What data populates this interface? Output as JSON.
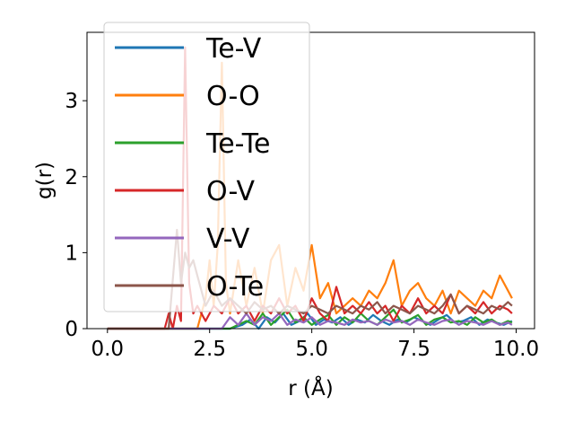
{
  "chart_data": {
    "type": "line",
    "xlabel": "r (Å)",
    "ylabel": "g(r)",
    "xlim": [
      -0.5,
      10.45
    ],
    "ylim": [
      0,
      3.9
    ],
    "xticks": [
      "0.0",
      "2.5",
      "5.0",
      "7.5",
      "10.0"
    ],
    "xtick_values": [
      0,
      2.5,
      5,
      7.5,
      10
    ],
    "yticks": [
      "0",
      "1",
      "2",
      "3"
    ],
    "ytick_values": [
      0,
      1,
      2,
      3
    ],
    "grid": false,
    "legend_position": "top-left",
    "series": [
      {
        "name": "Te-V",
        "color": "#1f77b4",
        "x": [
          0,
          0.5,
          1.0,
          1.5,
          2.0,
          2.5,
          3.0,
          3.3,
          3.5,
          3.7,
          3.9,
          4.1,
          4.3,
          4.5,
          4.7,
          4.9,
          5.1,
          5.3,
          5.5,
          5.7,
          5.9,
          6.1,
          6.3,
          6.5,
          6.7,
          6.9,
          7.1,
          7.3,
          7.5,
          7.7,
          7.9,
          8.1,
          8.3,
          8.5,
          8.7,
          8.9,
          9.1,
          9.3,
          9.5,
          9.7,
          9.9
        ],
        "y": [
          0,
          0,
          0,
          0,
          0,
          0,
          0,
          0.05,
          0.12,
          0,
          0.15,
          0.08,
          0.2,
          0.05,
          0.1,
          0.2,
          0.05,
          0.12,
          0.08,
          0.15,
          0.05,
          0.12,
          0.08,
          0.18,
          0.1,
          0.05,
          0.12,
          0.08,
          0.15,
          0.1,
          0.05,
          0.12,
          0.18,
          0.08,
          0.1,
          0.15,
          0.05,
          0.12,
          0.08,
          0.05,
          0.1
        ]
      },
      {
        "name": "O-O",
        "color": "#ff7f0e",
        "x": [
          0,
          1.5,
          2.2,
          2.4,
          2.5,
          2.6,
          2.7,
          2.8,
          2.9,
          3.0,
          3.2,
          3.4,
          3.6,
          3.8,
          4.0,
          4.2,
          4.4,
          4.6,
          4.8,
          5.0,
          5.2,
          5.4,
          5.6,
          5.8,
          6.0,
          6.2,
          6.4,
          6.6,
          6.8,
          7.0,
          7.2,
          7.4,
          7.6,
          7.8,
          8.0,
          8.2,
          8.4,
          8.6,
          8.8,
          9.0,
          9.2,
          9.4,
          9.6,
          9.8,
          9.9
        ],
        "y": [
          0,
          0,
          0,
          0.4,
          0.9,
          0.3,
          1.1,
          3.5,
          0.6,
          0.2,
          0.9,
          0.3,
          0.8,
          0.2,
          0.9,
          1.1,
          0.3,
          0.8,
          0.5,
          1.1,
          0.4,
          0.6,
          0.2,
          0.3,
          0.4,
          0.3,
          0.5,
          0.4,
          0.6,
          0.9,
          0.3,
          0.5,
          0.6,
          0.4,
          0.3,
          0.5,
          0.2,
          0.5,
          0.4,
          0.3,
          0.5,
          0.4,
          0.7,
          0.5,
          0.4
        ]
      },
      {
        "name": "Te-Te",
        "color": "#2ca02c",
        "x": [
          0,
          1.0,
          2.0,
          3.0,
          3.4,
          3.6,
          3.8,
          4.0,
          4.2,
          4.4,
          4.6,
          4.8,
          5.0,
          5.2,
          5.4,
          5.6,
          5.8,
          6.0,
          6.2,
          6.4,
          6.6,
          6.8,
          7.0,
          7.2,
          7.4,
          7.6,
          7.8,
          8.0,
          8.2,
          8.4,
          8.6,
          8.8,
          9.0,
          9.2,
          9.4,
          9.6,
          9.8,
          9.9
        ],
        "y": [
          0,
          0,
          0,
          0,
          0.1,
          0.05,
          0.2,
          0.05,
          0.15,
          0.25,
          0.08,
          0.15,
          0.05,
          0.12,
          0.18,
          0.05,
          0.15,
          0.08,
          0.2,
          0.1,
          0.05,
          0.15,
          0.25,
          0.08,
          0.12,
          0.18,
          0.05,
          0.12,
          0.15,
          0.08,
          0.1,
          0.05,
          0.15,
          0.08,
          0.12,
          0.05,
          0.1,
          0.08
        ]
      },
      {
        "name": "O-V",
        "color": "#d62728",
        "x": [
          0,
          1.4,
          1.5,
          1.6,
          1.7,
          1.8,
          1.9,
          2.0,
          2.1,
          2.2,
          2.4,
          2.6,
          2.8,
          3.0,
          3.2,
          3.4,
          3.6,
          3.8,
          4.0,
          4.2,
          4.4,
          4.6,
          4.8,
          5.0,
          5.2,
          5.4,
          5.6,
          5.8,
          6.0,
          6.2,
          6.4,
          6.6,
          6.8,
          7.0,
          7.2,
          7.4,
          7.6,
          7.8,
          8.0,
          8.2,
          8.4,
          8.6,
          8.8,
          9.0,
          9.2,
          9.4,
          9.6,
          9.8,
          9.9
        ],
        "y": [
          0,
          0,
          0.2,
          0,
          0.3,
          0.1,
          3.7,
          0.6,
          0.2,
          0.3,
          0.1,
          0.3,
          0.2,
          0.4,
          0.2,
          0.3,
          0.1,
          0.3,
          0.2,
          0.4,
          0.2,
          0.3,
          0.1,
          0.4,
          0.2,
          0.1,
          0.55,
          0.2,
          0.3,
          0.2,
          0.35,
          0.2,
          0.3,
          0.1,
          0.3,
          0.2,
          0.4,
          0.2,
          0.3,
          0.2,
          0.45,
          0.2,
          0.3,
          0.2,
          0.35,
          0.2,
          0.3,
          0.25,
          0.2
        ]
      },
      {
        "name": "V-V",
        "color": "#9467bd",
        "x": [
          0,
          1.0,
          2.0,
          2.8,
          3.0,
          3.2,
          3.4,
          3.6,
          3.8,
          4.0,
          4.2,
          4.4,
          4.6,
          4.8,
          5.0,
          5.2,
          5.4,
          5.6,
          5.8,
          6.0,
          6.2,
          6.4,
          6.6,
          6.8,
          7.0,
          7.2,
          7.4,
          7.6,
          7.8,
          8.0,
          8.2,
          8.4,
          8.6,
          8.8,
          9.0,
          9.2,
          9.4,
          9.6,
          9.8,
          9.9
        ],
        "y": [
          0,
          0,
          0,
          0,
          0.15,
          0.05,
          0.2,
          0.05,
          0.15,
          0.1,
          0.2,
          0.05,
          0.12,
          0.08,
          0.15,
          0.05,
          0.1,
          0.08,
          0.05,
          0.12,
          0.08,
          0.1,
          0.05,
          0.12,
          0.08,
          0.1,
          0.05,
          0.12,
          0.08,
          0.05,
          0.1,
          0.12,
          0.05,
          0.1,
          0.08,
          0.05,
          0.1,
          0.05,
          0.08,
          0.05
        ]
      },
      {
        "name": "O-Te",
        "color": "#8c564b",
        "x": [
          0,
          1.5,
          1.7,
          1.8,
          1.9,
          2.0,
          2.1,
          2.2,
          2.4,
          2.6,
          2.8,
          3.0,
          3.2,
          3.4,
          3.6,
          3.8,
          4.0,
          4.2,
          4.4,
          4.6,
          4.8,
          5.0,
          5.2,
          5.4,
          5.6,
          5.8,
          6.0,
          6.2,
          6.4,
          6.6,
          6.8,
          7.0,
          7.2,
          7.4,
          7.6,
          7.8,
          8.0,
          8.2,
          8.4,
          8.6,
          8.8,
          9.0,
          9.2,
          9.4,
          9.6,
          9.8,
          9.9
        ],
        "y": [
          0,
          0,
          1.3,
          0.6,
          1.0,
          0.8,
          0.9,
          0.7,
          0.3,
          0.5,
          0.3,
          0.4,
          0.3,
          0.2,
          0.35,
          0.25,
          0.3,
          0.2,
          0.3,
          0.25,
          0.2,
          0.3,
          0.25,
          0.2,
          0.3,
          0.25,
          0.2,
          0.3,
          0.25,
          0.35,
          0.2,
          0.3,
          0.25,
          0.2,
          0.3,
          0.25,
          0.2,
          0.3,
          0.45,
          0.2,
          0.3,
          0.25,
          0.2,
          0.3,
          0.25,
          0.35,
          0.3
        ]
      }
    ]
  }
}
